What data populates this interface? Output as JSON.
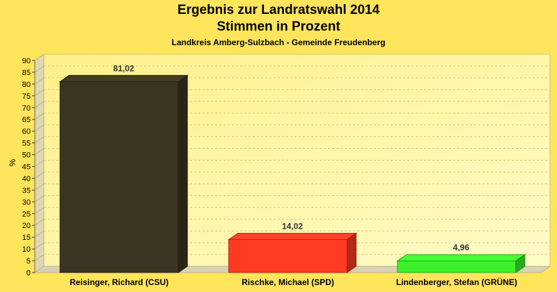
{
  "chart_data": {
    "type": "bar",
    "title": "Ergebnis zur Landratswahl 2014",
    "title_line2": "Stimmen in Prozent",
    "subtitle": "Landkreis Amberg-Sulzbach - Gemeinde Freudenberg",
    "ylabel": "%",
    "xlabel": "",
    "ylim": [
      0,
      90
    ],
    "y_ticks": [
      "0",
      "5",
      "10",
      "15",
      "20",
      "25",
      "30",
      "35",
      "40",
      "45",
      "50",
      "55",
      "60",
      "65",
      "70",
      "75",
      "80",
      "85",
      "90"
    ],
    "categories": [
      "Reisinger, Richard (CSU)",
      "Rischke, Michael (SPD)",
      "Lindenberger, Stefan (GRÜNE)"
    ],
    "values": [
      81.02,
      14.02,
      4.96
    ],
    "value_labels": [
      "81,02",
      "14,02",
      "4,96"
    ],
    "bar_colors": [
      "#3A3520",
      "#FF3A22",
      "#3CF02A"
    ],
    "grid": true,
    "legend": "none"
  },
  "colors": {
    "background": "#FFE55C",
    "plot_fill": "#FFF59A",
    "grid": "#D8C970",
    "wall": "#E0D8B0"
  }
}
